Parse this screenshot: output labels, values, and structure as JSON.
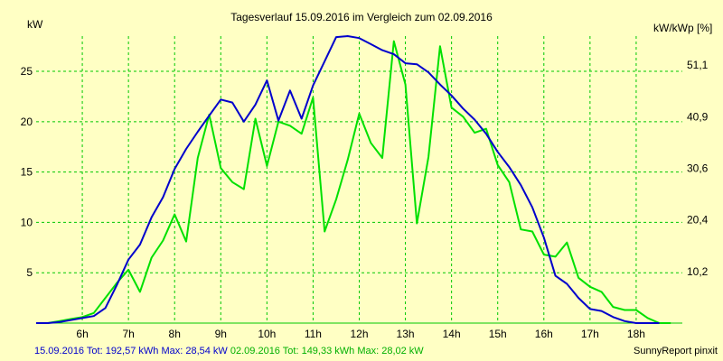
{
  "chart_data": {
    "type": "line",
    "title": "Tagesverlauf 15.09.2016 im Vergleich zum 02.09.2016",
    "ylabel": "kW",
    "y2label": "kW/kWp [%]",
    "xlim": [
      5.0,
      19.0
    ],
    "ylim": [
      0,
      28.5
    ],
    "x_ticks": [
      6,
      7,
      8,
      9,
      10,
      11,
      12,
      13,
      14,
      15,
      16,
      17,
      18
    ],
    "x_tick_labels": [
      "6h",
      "7h",
      "8h",
      "9h",
      "10h",
      "11h",
      "12h",
      "13h",
      "14h",
      "15h",
      "16h",
      "17h",
      "18h"
    ],
    "y_ticks": [
      5,
      10,
      15,
      20,
      25
    ],
    "y_tick_labels": [
      "5",
      "10",
      "15",
      "20",
      "25"
    ],
    "y2_ticks": [
      5.125,
      10.25,
      15.375,
      20.5,
      25.625
    ],
    "y2_tick_labels": [
      "10,2",
      "20,4",
      "30,6",
      "40,9",
      "51,1"
    ],
    "grid": true,
    "colors": {
      "background": "#ffffc4",
      "grid": "#00c800",
      "series_1": "#0000cc",
      "series_2": "#00e000"
    },
    "series": [
      {
        "name": "15.09.2016",
        "color": "#0000cc",
        "x": [
          5.0,
          5.25,
          5.5,
          5.75,
          6.0,
          6.25,
          6.5,
          6.75,
          7.0,
          7.25,
          7.5,
          7.75,
          8.0,
          8.25,
          8.5,
          8.75,
          9.0,
          9.25,
          9.5,
          9.75,
          10.0,
          10.25,
          10.5,
          10.75,
          11.0,
          11.25,
          11.5,
          11.75,
          12.0,
          12.25,
          12.5,
          12.75,
          13.0,
          13.25,
          13.5,
          13.75,
          14.0,
          14.25,
          14.5,
          14.75,
          15.0,
          15.25,
          15.5,
          15.75,
          16.0,
          16.25,
          16.5,
          16.75,
          17.0,
          17.25,
          17.5,
          17.75,
          18.0,
          18.25,
          18.5
        ],
        "y": [
          0,
          0,
          0.1,
          0.3,
          0.5,
          0.7,
          1.5,
          3.8,
          6.3,
          7.8,
          10.5,
          12.5,
          15.3,
          17.3,
          19.0,
          20.6,
          22.2,
          21.9,
          20.0,
          21.7,
          24.1,
          20.1,
          23.1,
          20.3,
          23.6,
          26.0,
          28.4,
          28.5,
          28.3,
          27.7,
          27.1,
          26.7,
          25.8,
          25.7,
          24.9,
          23.7,
          22.6,
          21.3,
          20.2,
          18.8,
          17.0,
          15.5,
          13.7,
          11.5,
          8.5,
          4.7,
          3.9,
          2.5,
          1.4,
          1.2,
          0.6,
          0.2,
          0,
          0,
          0
        ]
      },
      {
        "name": "02.09.2016",
        "color": "#00e000",
        "x": [
          5.0,
          5.25,
          5.5,
          5.75,
          6.0,
          6.25,
          6.5,
          6.75,
          7.0,
          7.25,
          7.5,
          7.75,
          8.0,
          8.25,
          8.5,
          8.75,
          9.0,
          9.25,
          9.5,
          9.75,
          10.0,
          10.25,
          10.5,
          10.75,
          11.0,
          11.25,
          11.5,
          11.75,
          12.0,
          12.25,
          12.5,
          12.75,
          13.0,
          13.25,
          13.5,
          13.75,
          14.0,
          14.25,
          14.5,
          14.75,
          15.0,
          15.25,
          15.5,
          15.75,
          16.0,
          16.25,
          16.5,
          16.75,
          17.0,
          17.25,
          17.5,
          17.75,
          18.0,
          18.25,
          18.5,
          18.75
        ],
        "y": [
          0,
          0,
          0.2,
          0.4,
          0.6,
          1.0,
          2.5,
          4.0,
          5.3,
          3.1,
          6.5,
          8.2,
          10.8,
          8.1,
          16.4,
          20.7,
          15.4,
          14.0,
          13.3,
          20.3,
          15.6,
          20.0,
          19.6,
          18.8,
          22.4,
          9.1,
          12.3,
          16.2,
          20.8,
          17.9,
          16.4,
          28.0,
          23.7,
          9.9,
          16.5,
          27.5,
          21.4,
          20.5,
          18.9,
          19.3,
          15.7,
          14.0,
          9.3,
          9.1,
          6.8,
          6.6,
          8.0,
          4.5,
          3.6,
          3.1,
          1.6,
          1.3,
          1.3,
          0.5,
          0,
          0
        ]
      }
    ]
  },
  "footer": {
    "series_1_summary": "15.09.2016 Tot: 192,57 kWh Max: 28,54 kW",
    "series_2_summary": "02.09.2016 Tot: 149,33 kWh Max: 28,02 kW",
    "credit": "SunnyReport pinxit"
  }
}
